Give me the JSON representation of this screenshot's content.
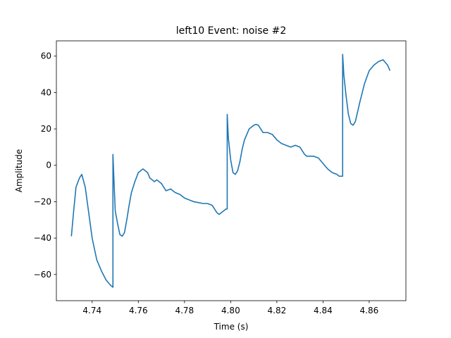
{
  "chart_data": {
    "type": "line",
    "title": "left10 Event: noise #2",
    "xlabel": "Time (s)",
    "ylabel": "Amplitude",
    "xlim": [
      4.7245,
      4.8759
    ],
    "ylim": [
      -74.4,
      68.4
    ],
    "grid": false,
    "x_ticks": [
      4.74,
      4.76,
      4.78,
      4.8,
      4.82,
      4.84,
      4.86
    ],
    "x_tick_labels": [
      "4.74",
      "4.76",
      "4.78",
      "4.80",
      "4.82",
      "4.84",
      "4.86"
    ],
    "y_ticks": [
      -60,
      -40,
      -20,
      0,
      20,
      40,
      60
    ],
    "y_tick_labels": [
      "−60",
      "−40",
      "−20",
      "0",
      "20",
      "40",
      "60"
    ],
    "series": [
      {
        "color": "#1f77b4",
        "x": [
          4.731,
          4.732,
          4.733,
          4.7345,
          4.7355,
          4.737,
          4.7385,
          4.74,
          4.742,
          4.744,
          4.746,
          4.748,
          4.749,
          4.749,
          4.7495,
          4.75,
          4.751,
          4.752,
          4.753,
          4.754,
          4.755,
          4.756,
          4.757,
          4.7585,
          4.76,
          4.762,
          4.764,
          4.765,
          4.766,
          4.767,
          4.768,
          4.77,
          4.772,
          4.774,
          4.776,
          4.778,
          4.78,
          4.782,
          4.784,
          4.786,
          4.788,
          4.79,
          4.792,
          4.794,
          4.795,
          4.796,
          4.797,
          4.798,
          4.7985,
          4.7985,
          4.799,
          4.8,
          4.801,
          4.802,
          4.803,
          4.804,
          4.805,
          4.806,
          4.808,
          4.81,
          4.811,
          4.812,
          4.813,
          4.814,
          4.816,
          4.818,
          4.82,
          4.822,
          4.824,
          4.826,
          4.828,
          4.83,
          4.831,
          4.832,
          4.833,
          4.834,
          4.836,
          4.838,
          4.84,
          4.842,
          4.844,
          4.846,
          4.847,
          4.848,
          4.8485,
          4.8485,
          4.849,
          4.85,
          4.851,
          4.852,
          4.853,
          4.854,
          4.856,
          4.858,
          4.86,
          4.862,
          4.863,
          4.864,
          4.866,
          4.868,
          4.869
        ],
        "y": [
          -39,
          -25,
          -12,
          -7,
          -5,
          -12,
          -26,
          -40,
          -52,
          -58,
          -63,
          -66,
          -67,
          6,
          -10,
          -25,
          -32,
          -38,
          -39,
          -37,
          -30,
          -22,
          -15,
          -9,
          -4,
          -2,
          -4,
          -7,
          -8,
          -9,
          -8,
          -10,
          -14,
          -13,
          -15,
          -16,
          -18,
          -19,
          -20,
          -20.5,
          -21,
          -21,
          -22,
          -26,
          -27,
          -26,
          -25,
          -24,
          -24,
          28,
          15,
          3,
          -4,
          -5,
          -3,
          2,
          9,
          14,
          20,
          22,
          22.5,
          22,
          20,
          18,
          18,
          17,
          14,
          12,
          11,
          10,
          11,
          10,
          8,
          6,
          5,
          5,
          5,
          4,
          1,
          -2,
          -4,
          -5,
          -6,
          -6,
          -6,
          61,
          50,
          38,
          28,
          23,
          22,
          24,
          35,
          45,
          52,
          55,
          56,
          57,
          58,
          55,
          52
        ]
      }
    ]
  }
}
